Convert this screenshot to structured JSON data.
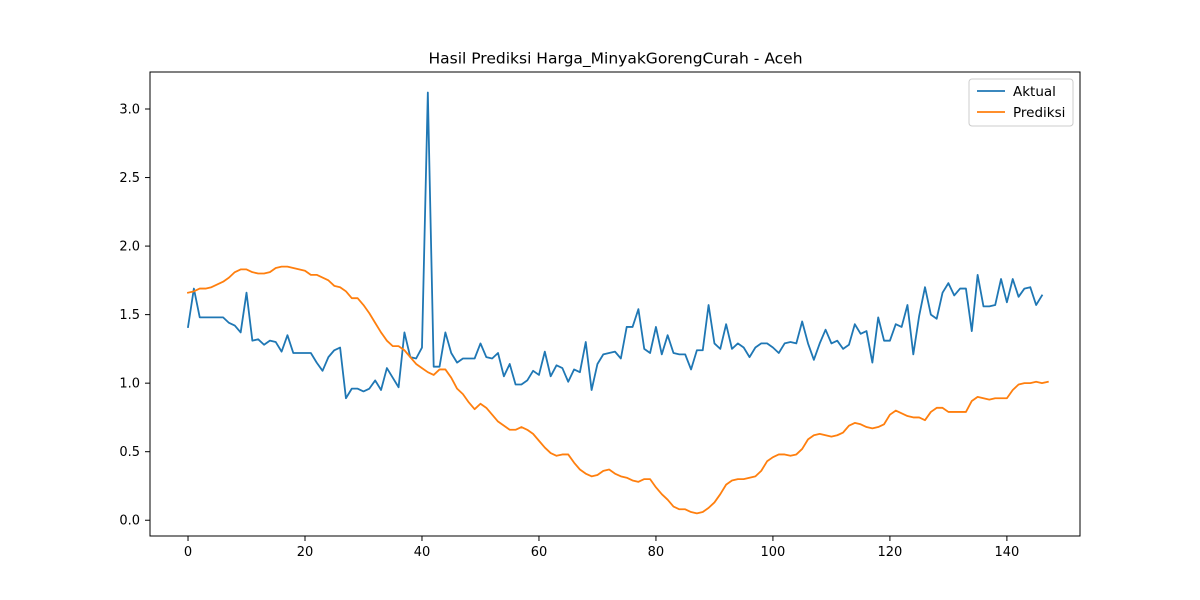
{
  "chart_data": {
    "type": "line",
    "title": "Hasil Prediksi Harga_MinyakGorengCurah - Aceh",
    "xlabel": "",
    "ylabel": "",
    "xlim": [
      -6.5,
      152.5
    ],
    "ylim": [
      -0.115,
      3.27
    ],
    "x_ticks": [
      0,
      20,
      40,
      60,
      80,
      100,
      120,
      140
    ],
    "y_ticks": [
      0.0,
      0.5,
      1.0,
      1.5,
      2.0,
      2.5,
      3.0
    ],
    "y_tick_labels": [
      "0.0",
      "0.5",
      "1.0",
      "1.5",
      "2.0",
      "2.5",
      "3.0"
    ],
    "grid": false,
    "legend_position": "top-right",
    "series": [
      {
        "name": "Aktual",
        "color": "#1f77b4",
        "values": [
          1.41,
          1.69,
          1.48,
          1.48,
          1.48,
          1.48,
          1.48,
          1.44,
          1.42,
          1.37,
          1.66,
          1.31,
          1.32,
          1.28,
          1.31,
          1.3,
          1.23,
          1.35,
          1.22,
          1.22,
          1.22,
          1.22,
          1.15,
          1.09,
          1.19,
          1.24,
          1.26,
          0.89,
          0.96,
          0.96,
          0.94,
          0.96,
          1.02,
          0.95,
          1.11,
          1.04,
          0.97,
          1.37,
          1.19,
          1.18,
          1.26,
          3.12,
          1.12,
          1.12,
          1.37,
          1.22,
          1.15,
          1.18,
          1.18,
          1.18,
          1.29,
          1.19,
          1.18,
          1.22,
          1.05,
          1.14,
          0.99,
          0.99,
          1.02,
          1.09,
          1.06,
          1.23,
          1.05,
          1.13,
          1.11,
          1.01,
          1.1,
          1.08,
          1.3,
          0.95,
          1.14,
          1.21,
          1.22,
          1.23,
          1.18,
          1.41,
          1.41,
          1.54,
          1.25,
          1.22,
          1.41,
          1.21,
          1.35,
          1.22,
          1.21,
          1.21,
          1.1,
          1.24,
          1.24,
          1.57,
          1.29,
          1.25,
          1.43,
          1.25,
          1.29,
          1.26,
          1.19,
          1.26,
          1.29,
          1.29,
          1.26,
          1.22,
          1.29,
          1.3,
          1.29,
          1.45,
          1.29,
          1.17,
          1.29,
          1.39,
          1.29,
          1.31,
          1.25,
          1.28,
          1.43,
          1.36,
          1.38,
          1.15,
          1.48,
          1.31,
          1.31,
          1.43,
          1.41,
          1.57,
          1.21,
          1.49,
          1.7,
          1.5,
          1.47,
          1.66,
          1.73,
          1.64,
          1.69,
          1.69,
          1.38,
          1.79,
          1.56,
          1.56,
          1.57,
          1.76,
          1.59,
          1.76,
          1.63,
          1.69,
          1.7,
          1.57,
          1.64
        ]
      },
      {
        "name": "Prediksi",
        "color": "#ff7f0e",
        "values": [
          1.66,
          1.67,
          1.69,
          1.69,
          1.7,
          1.72,
          1.74,
          1.77,
          1.81,
          1.83,
          1.83,
          1.81,
          1.8,
          1.8,
          1.81,
          1.84,
          1.85,
          1.85,
          1.84,
          1.83,
          1.82,
          1.79,
          1.79,
          1.77,
          1.75,
          1.71,
          1.7,
          1.67,
          1.62,
          1.62,
          1.57,
          1.51,
          1.44,
          1.37,
          1.31,
          1.27,
          1.27,
          1.24,
          1.19,
          1.14,
          1.11,
          1.08,
          1.06,
          1.1,
          1.1,
          1.04,
          0.96,
          0.92,
          0.86,
          0.81,
          0.85,
          0.82,
          0.77,
          0.72,
          0.69,
          0.66,
          0.66,
          0.68,
          0.66,
          0.63,
          0.58,
          0.53,
          0.49,
          0.47,
          0.48,
          0.48,
          0.42,
          0.37,
          0.34,
          0.32,
          0.33,
          0.36,
          0.37,
          0.34,
          0.32,
          0.31,
          0.29,
          0.28,
          0.3,
          0.3,
          0.24,
          0.19,
          0.15,
          0.1,
          0.08,
          0.08,
          0.06,
          0.05,
          0.06,
          0.09,
          0.13,
          0.19,
          0.26,
          0.29,
          0.3,
          0.3,
          0.31,
          0.32,
          0.36,
          0.43,
          0.46,
          0.48,
          0.48,
          0.47,
          0.48,
          0.52,
          0.59,
          0.62,
          0.63,
          0.62,
          0.61,
          0.62,
          0.64,
          0.69,
          0.71,
          0.7,
          0.68,
          0.67,
          0.68,
          0.7,
          0.77,
          0.8,
          0.78,
          0.76,
          0.75,
          0.75,
          0.73,
          0.79,
          0.82,
          0.82,
          0.79,
          0.79,
          0.79,
          0.79,
          0.87,
          0.9,
          0.89,
          0.88,
          0.89,
          0.89,
          0.89,
          0.95,
          0.99,
          1.0,
          1.0,
          1.01,
          1.0,
          1.01
        ]
      }
    ]
  }
}
